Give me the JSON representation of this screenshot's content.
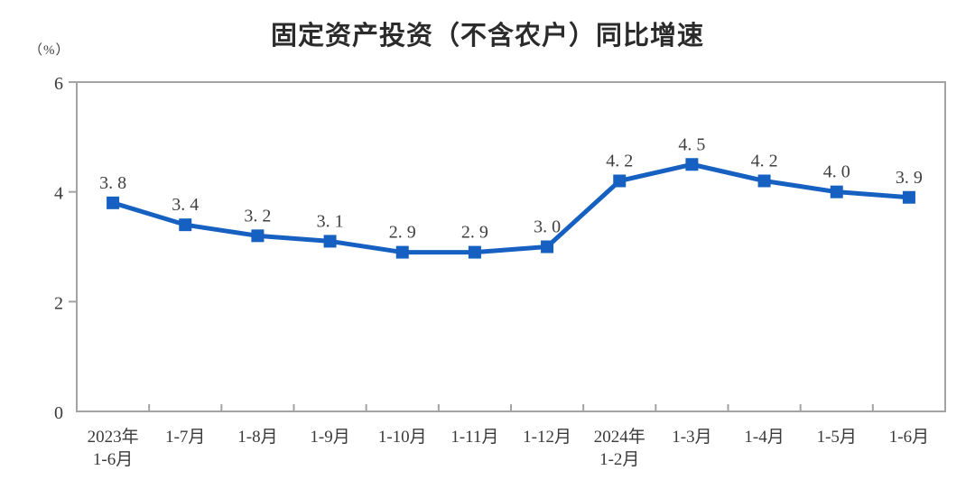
{
  "header": {
    "title": "固定资产投资（不含农户）同比增速",
    "y_unit_label": "（%）"
  },
  "colors": {
    "series_line": "#1560c0",
    "axis_frame": "#a3a3a3",
    "label_text": "#3f3f3f",
    "title_text": "#2b2b2b",
    "background": "#ffffff"
  },
  "chart_data": {
    "type": "line",
    "title": "固定资产投资（不含农户）同比增速",
    "ylabel": "（%）",
    "xlabel": "",
    "categories": [
      "2023年\n1-6月",
      "1-7月",
      "1-8月",
      "1-9月",
      "1-10月",
      "1-11月",
      "1-12月",
      "2024年\n1-2月",
      "1-3月",
      "1-4月",
      "1-5月",
      "1-6月"
    ],
    "values": [
      3.8,
      3.4,
      3.2,
      3.1,
      2.9,
      2.9,
      3.0,
      4.2,
      4.5,
      4.2,
      4.0,
      3.9
    ],
    "point_labels": [
      "3. 8",
      "3. 4",
      "3. 2",
      "3. 1",
      "2. 9",
      "2. 9",
      "3. 0",
      "4. 2",
      "4. 5",
      "4. 2",
      "4. 0",
      "3. 9"
    ],
    "ylim": [
      0,
      6
    ],
    "yticks": [
      0,
      2,
      4,
      6
    ],
    "grid": false,
    "legend_position": "none",
    "marker": "square",
    "series_color": "#1560c0",
    "axis_color": "#a3a3a3"
  }
}
